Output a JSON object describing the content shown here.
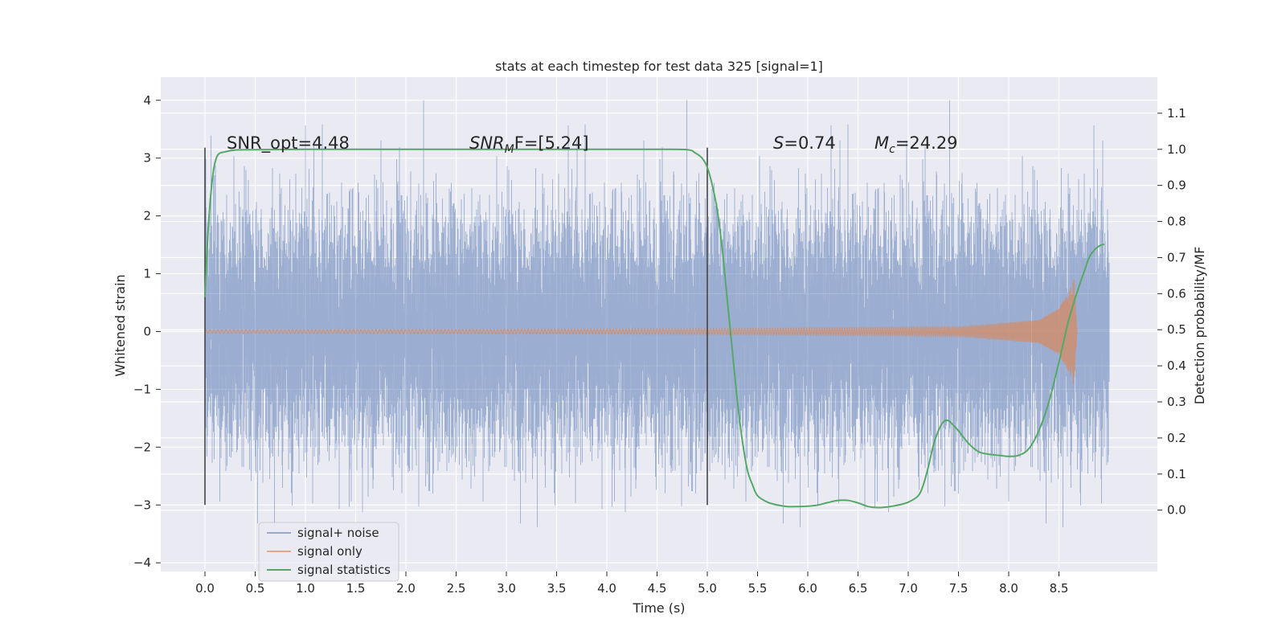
{
  "chart_data": {
    "type": "line",
    "title": "stats at each timestep for test data 325 [signal=1]",
    "xlabel": "Time (s)",
    "ylabel": "Whitened strain",
    "y2label": "Detection probability/MF",
    "xlim": [
      -0.44,
      9.48
    ],
    "ylim": [
      -4.15,
      4.4
    ],
    "y2lim": [
      -0.17,
      1.2
    ],
    "x_ticks": [
      0.0,
      0.5,
      1.0,
      1.5,
      2.0,
      2.5,
      3.0,
      3.5,
      4.0,
      4.5,
      5.0,
      5.5,
      6.0,
      6.5,
      7.0,
      7.5,
      8.0,
      8.5
    ],
    "y_ticks": [
      -4,
      -3,
      -2,
      -1,
      0,
      1,
      2,
      3,
      4
    ],
    "y2_ticks": [
      0.0,
      0.1,
      0.2,
      0.3,
      0.4,
      0.5,
      0.6,
      0.7,
      0.8,
      0.9,
      1.0,
      1.1
    ],
    "grid": true,
    "legend_position": "lower-left",
    "colors": {
      "noise": "#4c72b0",
      "signal": "#dd8452",
      "stats": "#55a868",
      "vline": "#444444",
      "background": "#eaeaf2",
      "grid": "#ffffff"
    },
    "annotations": {
      "snr_opt": "SNR_opt=4.48",
      "snr_mf_main": "SNR",
      "snr_mf_sub": "M",
      "snr_mf_rest": "F=[5.24]",
      "s_main": "S",
      "s_rest": "=0.74",
      "mc_main": "M",
      "mc_sub": "c",
      "mc_rest": "=24.29"
    },
    "vlines": [
      {
        "x": 0.0,
        "y_range": [
          -3.0,
          3.18
        ]
      },
      {
        "x": 5.0,
        "y_range": [
          -3.0,
          3.18
        ]
      }
    ],
    "series": [
      {
        "name": "signal+ noise",
        "kind": "noise",
        "x_range": [
          0.0,
          9.0
        ],
        "sigma": 1.0,
        "max_abs": 4.0,
        "note": "whitened Gaussian noise, drawn as dense vertical band"
      },
      {
        "name": "signal only",
        "kind": "chirp",
        "x_range": [
          0.0,
          8.68
        ],
        "amplitude_envelope": {
          "t": [
            0.0,
            5.0,
            7.5,
            8.3,
            8.5,
            8.6,
            8.65,
            8.68
          ],
          "a": [
            0.03,
            0.05,
            0.08,
            0.2,
            0.4,
            0.7,
            0.95,
            0.0
          ]
        },
        "merger_time": 8.68
      },
      {
        "name": "signal statistics",
        "kind": "probability",
        "axis": "right",
        "x": [
          0.0,
          0.03,
          0.06,
          0.09,
          0.13,
          0.2,
          0.3,
          0.5,
          1.0,
          2.0,
          3.0,
          4.0,
          4.5,
          4.8,
          4.88,
          4.95,
          5.0,
          5.05,
          5.1,
          5.15,
          5.2,
          5.25,
          5.3,
          5.35,
          5.4,
          5.45,
          5.5,
          5.6,
          5.7,
          5.8,
          5.9,
          6.0,
          6.1,
          6.2,
          6.3,
          6.4,
          6.5,
          6.6,
          6.7,
          6.8,
          6.9,
          7.0,
          7.1,
          7.15,
          7.2,
          7.25,
          7.3,
          7.35,
          7.4,
          7.45,
          7.5,
          7.6,
          7.7,
          7.8,
          7.9,
          8.0,
          8.1,
          8.2,
          8.3,
          8.4,
          8.5,
          8.6,
          8.7,
          8.75,
          8.8,
          8.85,
          8.9,
          8.95
        ],
        "y": [
          0.59,
          0.77,
          0.88,
          0.95,
          0.985,
          0.993,
          0.998,
          0.999,
          1.0,
          1.0,
          1.0,
          1.0,
          1.0,
          0.999,
          0.99,
          0.975,
          0.95,
          0.9,
          0.83,
          0.72,
          0.58,
          0.44,
          0.3,
          0.19,
          0.11,
          0.07,
          0.04,
          0.022,
          0.014,
          0.01,
          0.01,
          0.011,
          0.014,
          0.021,
          0.027,
          0.027,
          0.02,
          0.01,
          0.007,
          0.009,
          0.014,
          0.022,
          0.04,
          0.07,
          0.12,
          0.18,
          0.22,
          0.245,
          0.248,
          0.235,
          0.22,
          0.185,
          0.162,
          0.155,
          0.152,
          0.149,
          0.152,
          0.17,
          0.22,
          0.3,
          0.41,
          0.53,
          0.62,
          0.66,
          0.7,
          0.72,
          0.732,
          0.737
        ]
      }
    ]
  }
}
